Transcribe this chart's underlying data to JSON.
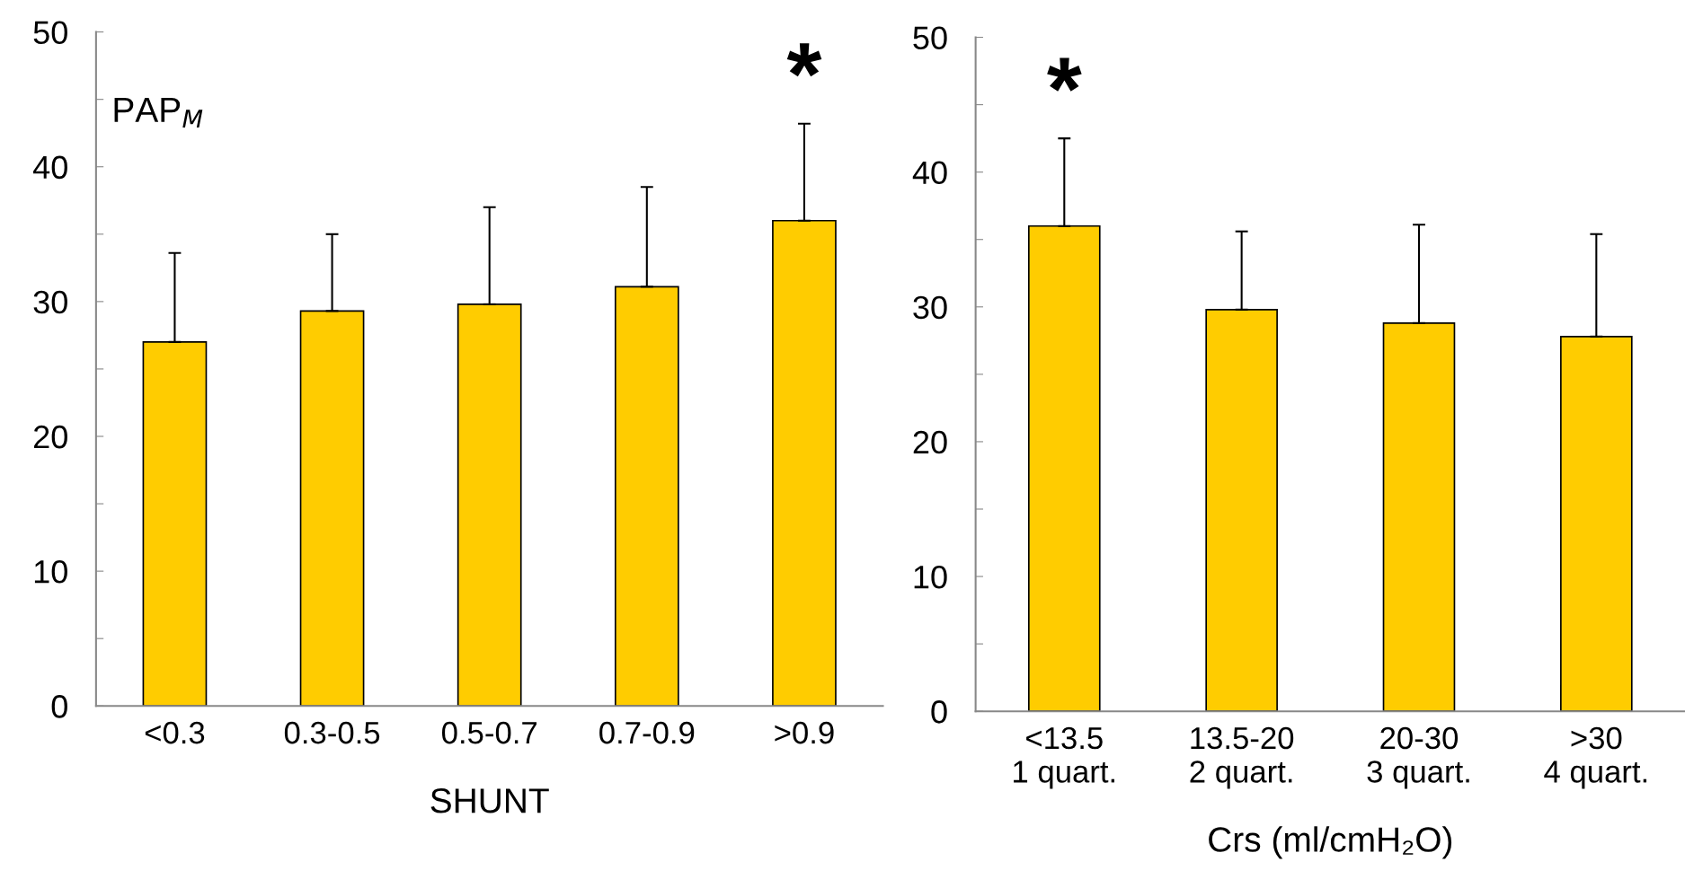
{
  "chart_data": [
    {
      "type": "bar",
      "categories": [
        "<0.3",
        "0.3-0.5",
        "0.5-0.7",
        "0.7-0.9",
        ">0.9"
      ],
      "values": [
        27.0,
        29.3,
        29.8,
        31.1,
        36.0
      ],
      "errors": [
        [
          27.0,
          33.6
        ],
        [
          29.3,
          35.0
        ],
        [
          29.8,
          37.0
        ],
        [
          31.1,
          38.5
        ],
        [
          36.0,
          43.2
        ]
      ],
      "color": "#ffcc00",
      "ylabel": "PAP$_{M}$",
      "xlabel": "SHUNT",
      "ylim": [
        0,
        50
      ],
      "yticks": [
        0,
        {
          "value": 5,
          "label": null
        },
        10,
        {
          "value": 15,
          "label": null
        },
        20,
        {
          "value": 25,
          "label": null
        },
        30,
        {
          "value": 35,
          "label": null
        },
        40,
        {
          "value": 45,
          "label": null
        },
        50
      ],
      "grid": false,
      "legend": false,
      "annotations": [
        {
          "text": "*",
          "x": ">0.9",
          "y": 43.2
        }
      ]
    },
    {
      "type": "bar",
      "categories": [
        "<13.5\n1 quart.",
        "13.5-20\n2 quart.",
        "20-30\n3 quart.",
        ">30\n4 quart."
      ],
      "values": [
        36.0,
        29.8,
        28.8,
        27.8
      ],
      "errors": [
        [
          36.0,
          42.5
        ],
        [
          29.8,
          35.6
        ],
        [
          28.8,
          36.1
        ],
        [
          27.8,
          35.4
        ]
      ],
      "color": "#ffcc00",
      "xlabel": "Crs (ml/cmH₂O)",
      "ylim": [
        0,
        50
      ],
      "yticks": [
        0,
        {
          "value": 5,
          "label": null
        },
        10,
        {
          "value": 15,
          "label": null
        },
        20,
        {
          "value": 25,
          "label": null
        },
        30,
        {
          "value": 35,
          "label": null
        },
        40,
        {
          "value": 45,
          "label": null
        },
        50
      ],
      "grid": false,
      "legend": false,
      "annotations": [
        {
          "text": "*",
          "x": "<13.5\n1 quart.",
          "y": 42.5
        }
      ]
    }
  ]
}
